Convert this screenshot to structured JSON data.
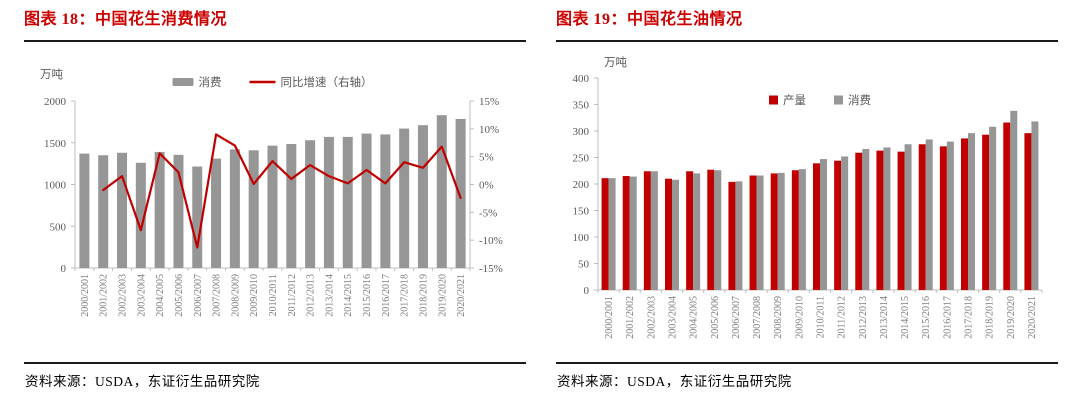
{
  "colors": {
    "red": "#C00000",
    "gray": "#969696",
    "title_red": "#CC0000",
    "axis": "#BFBFBF",
    "axis_text": "#595959",
    "xlabel_text": "#7F7F7F",
    "rule": "#1A1A1A"
  },
  "panels": [
    {
      "title": "图表 18：中国花生消费情况",
      "source": "资料来源：USDA，东证衍生品研究院",
      "chart_data": {
        "type": "bar+line",
        "title": "中国花生消费情况",
        "unit": "万吨",
        "grid": false,
        "legend_position": "top-center",
        "categories": [
          "2000/2001",
          "2001/2002",
          "2002/2003",
          "2003/2004",
          "2004/2005",
          "2005/2006",
          "2006/2007",
          "2007/2008",
          "2008/2009",
          "2009/2010",
          "2010/2011",
          "2011/2012",
          "2012/2013",
          "2013/2014",
          "2014/2015",
          "2015/2016",
          "2016/2017",
          "2017/2018",
          "2018/2019",
          "2019/2020",
          "2020/2021"
        ],
        "y_left": {
          "min": 0,
          "max": 2000,
          "step": 500,
          "suffix": ""
        },
        "y_right": {
          "min": -15,
          "max": 15,
          "step": 5,
          "suffix": "%"
        },
        "series": [
          {
            "name": "消费",
            "type": "bar",
            "axis": "left",
            "color_key": "gray",
            "values": [
              1370,
              1350,
              1380,
              1260,
              1390,
              1355,
              1215,
              1310,
              1420,
              1410,
              1465,
              1485,
              1530,
              1570,
              1570,
              1610,
              1600,
              1670,
              1710,
              1830,
              1785
            ]
          },
          {
            "name": "同比增速（右轴）",
            "type": "line",
            "axis": "right",
            "color_key": "red",
            "values": [
              null,
              -1.0,
              1.5,
              -8.2,
              5.6,
              2.2,
              -11.3,
              9.0,
              7.0,
              0.1,
              4.2,
              1.0,
              3.5,
              1.5,
              0.2,
              2.6,
              0.2,
              4.0,
              3.0,
              6.8,
              -2.4
            ]
          }
        ]
      }
    },
    {
      "title": "图表 19：中国花生油情况",
      "source": "资料来源：USDA，东证衍生品研究院",
      "chart_data": {
        "type": "grouped-bar",
        "title": "中国花生油情况",
        "unit": "万吨",
        "grid": false,
        "legend_position": "top-center-inside",
        "categories": [
          "2000/2001",
          "2001/2002",
          "2002/2003",
          "2003/2004",
          "2004/2005",
          "2005/2006",
          "2006/2007",
          "2007/2008",
          "2008/2009",
          "2009/2010",
          "2010/2011",
          "2011/2012",
          "2012/2013",
          "2013/2014",
          "2014/2015",
          "2015/2016",
          "2016/2017",
          "2017/2018",
          "2018/2019",
          "2019/2020",
          "2020/2021"
        ],
        "y_left": {
          "min": 0,
          "max": 400,
          "step": 50,
          "suffix": ""
        },
        "series": [
          {
            "name": "产量",
            "type": "bar",
            "axis": "left",
            "color_key": "red",
            "values": [
              211,
              215,
              224,
              210,
              224,
              227,
              204,
              216,
              220,
              226,
              239,
              244,
              259,
              263,
              261,
              275,
              271,
              286,
              293,
              316,
              296
            ]
          },
          {
            "name": "消费",
            "type": "bar",
            "axis": "left",
            "color_key": "gray",
            "values": [
              211,
              214,
              224,
              208,
              220,
              226,
              205,
              216,
              221,
              228,
              247,
              252,
              266,
              269,
              275,
              284,
              280,
              296,
              308,
              338,
              318
            ]
          }
        ]
      }
    }
  ]
}
